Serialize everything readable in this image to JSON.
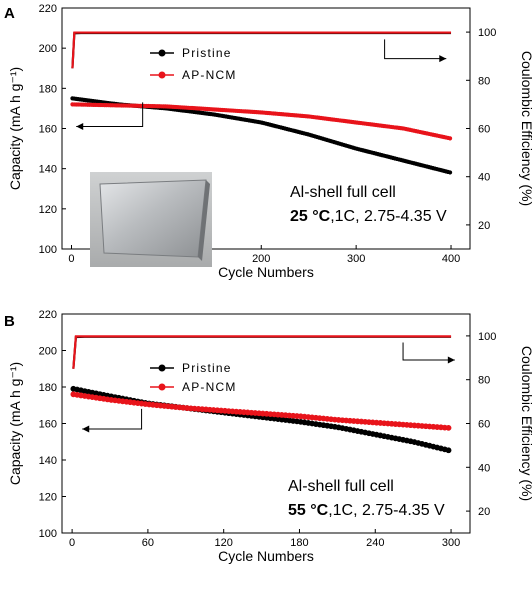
{
  "chart_data": [
    {
      "panel_label": "A",
      "type": "scatter",
      "xlabel": "Cycle Numbers",
      "ylabel": "Capacity (mA h g⁻¹)",
      "ylabel_right": "Coulombic Efficiency (%)",
      "xlim": [
        -10,
        420
      ],
      "ylim": [
        100,
        220
      ],
      "ylim_right": [
        10,
        110
      ],
      "xticks": [
        0,
        100,
        200,
        300,
        400
      ],
      "yticks": [
        100,
        120,
        140,
        160,
        180,
        200,
        220
      ],
      "yticks_right": [
        20,
        40,
        60,
        80,
        100
      ],
      "legend": [
        "Pristine",
        "AP-NCM"
      ],
      "legend_position": "top-center",
      "annotation_line1": "Al-shell full cell",
      "annotation_temp": "25 °C",
      "annotation_rest": ",1C, 2.75-4.35 V",
      "inset_photo": "aluminum-pouch-cell-photo",
      "colors": {
        "Pristine": "#000000",
        "AP-NCM": "#e8141b"
      },
      "series": [
        {
          "name": "Pristine",
          "axis": "capacity",
          "x": [
            1,
            50,
            100,
            150,
            200,
            250,
            300,
            350,
            400
          ],
          "values": [
            175,
            172,
            170,
            167,
            163,
            157,
            150,
            144,
            138
          ]
        },
        {
          "name": "AP-NCM",
          "axis": "capacity",
          "x": [
            1,
            50,
            100,
            150,
            200,
            250,
            300,
            350,
            400
          ],
          "values": [
            172,
            171.5,
            171,
            169.5,
            168,
            166,
            163,
            160,
            155
          ]
        },
        {
          "name": "Pristine",
          "axis": "efficiency",
          "x": [
            1,
            3,
            10,
            100,
            200,
            300,
            400
          ],
          "values": [
            85,
            99.5,
            99.6,
            99.6,
            99.6,
            99.6,
            99.6
          ]
        },
        {
          "name": "AP-NCM",
          "axis": "efficiency",
          "x": [
            1,
            3,
            10,
            100,
            200,
            300,
            400
          ],
          "values": [
            85,
            99.8,
            99.8,
            99.8,
            99.8,
            99.8,
            99.8
          ]
        }
      ],
      "arrows": [
        {
          "axis": "capacity",
          "from": [
            75,
            173
          ],
          "to": [
            5,
            161
          ]
        },
        {
          "axis": "efficiency",
          "from": [
            330,
            97
          ],
          "to": [
            395,
            89
          ]
        }
      ]
    },
    {
      "panel_label": "B",
      "type": "scatter",
      "xlabel": "Cycle Numbers",
      "ylabel": "Capacity (mA h g⁻¹)",
      "ylabel_right": "Coulombic Efficiency (%)",
      "xlim": [
        -8,
        315
      ],
      "ylim": [
        100,
        220
      ],
      "ylim_right": [
        10,
        110
      ],
      "xticks": [
        0,
        60,
        120,
        180,
        240,
        300
      ],
      "yticks": [
        100,
        120,
        140,
        160,
        180,
        200,
        220
      ],
      "yticks_right": [
        20,
        40,
        60,
        80,
        100
      ],
      "legend": [
        "Pristine",
        "AP-NCM"
      ],
      "legend_position": "top-center",
      "annotation_line1": "Al-shell full cell",
      "annotation_temp": "55 °C",
      "annotation_rest": ",1C, 2.75-4.35 V",
      "colors": {
        "Pristine": "#000000",
        "AP-NCM": "#e8141b"
      },
      "series": [
        {
          "name": "Pristine",
          "axis": "capacity",
          "x": [
            1,
            30,
            60,
            90,
            120,
            150,
            180,
            210,
            240,
            270,
            300
          ],
          "values": [
            179,
            175,
            171,
            168.5,
            166,
            163.5,
            161,
            158,
            154,
            150,
            145
          ]
        },
        {
          "name": "AP-NCM",
          "axis": "capacity",
          "x": [
            1,
            30,
            60,
            90,
            120,
            150,
            180,
            210,
            240,
            270,
            300
          ],
          "values": [
            176,
            173,
            170.5,
            168.5,
            167,
            165.5,
            164,
            162,
            160.5,
            159,
            157.5
          ]
        },
        {
          "name": "Pristine",
          "axis": "efficiency",
          "x": [
            1,
            3,
            10,
            100,
            200,
            300
          ],
          "values": [
            85,
            99.5,
            99.6,
            99.6,
            99.6,
            99.6
          ]
        },
        {
          "name": "AP-NCM",
          "axis": "efficiency",
          "x": [
            1,
            3,
            10,
            100,
            200,
            300
          ],
          "values": [
            85,
            99.8,
            99.8,
            99.8,
            99.8,
            99.8
          ]
        }
      ],
      "arrows": [
        {
          "axis": "capacity",
          "from": [
            55,
            168
          ],
          "to": [
            8,
            157
          ]
        },
        {
          "axis": "efficiency",
          "from": [
            262,
            97
          ],
          "to": [
            303,
            89
          ]
        }
      ]
    }
  ]
}
